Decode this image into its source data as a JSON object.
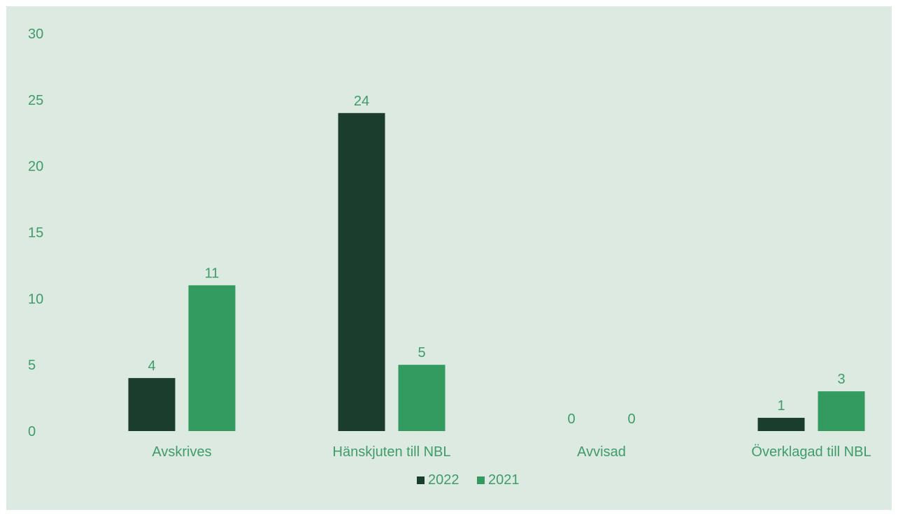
{
  "chart_data": {
    "type": "bar",
    "categories": [
      "Avskrives",
      "Hänskjuten till NBL",
      "Avvisad",
      "Överklagad till NBL"
    ],
    "series": [
      {
        "name": "2022",
        "values": [
          4,
          24,
          0,
          1
        ],
        "color": "#1a3d2d"
      },
      {
        "name": "2021",
        "values": [
          11,
          5,
          0,
          3
        ],
        "color": "#339b60"
      }
    ],
    "ylim": [
      0,
      30
    ],
    "yticks": [
      0,
      5,
      10,
      15,
      20,
      25,
      30
    ],
    "data_labels": true,
    "grid": false,
    "legend": "bottom-center",
    "colors": {
      "background": "#dceae2",
      "text": "#3f9c68"
    }
  }
}
